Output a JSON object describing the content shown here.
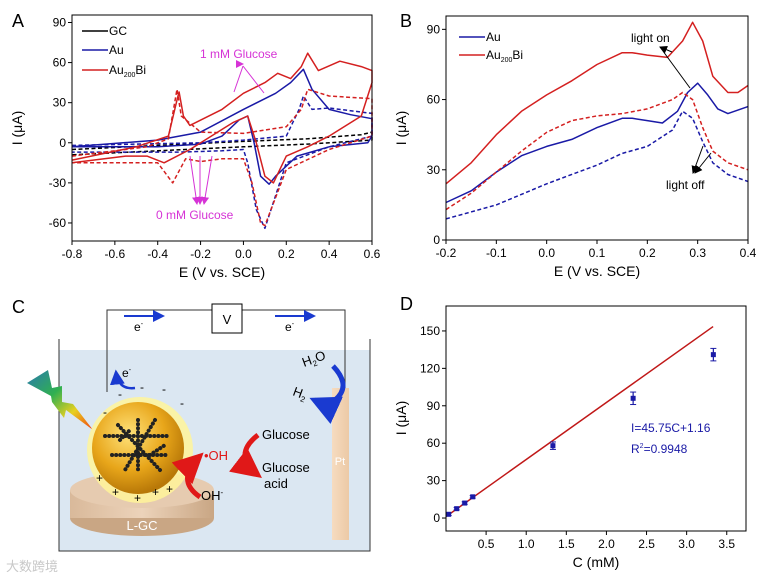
{
  "chart_data": [
    {
      "panel_label": "A",
      "type": "line",
      "xlabel": "E (V vs. SCE)",
      "ylabel": "I (μA)",
      "xlim": [
        -0.8,
        0.6
      ],
      "ylim": [
        -73.5,
        95.6
      ],
      "xticks": [
        -0.8,
        -0.6,
        -0.4,
        -0.2,
        0.0,
        0.2,
        0.4,
        0.6
      ],
      "xtick_labels": [
        "-0.8",
        "-0.6",
        "-0.4",
        "-0.2",
        "0.0",
        "0.2",
        "0.4",
        "0.6"
      ],
      "yticks": [
        -60,
        -30,
        0,
        30,
        60,
        90
      ],
      "ytick_labels": [
        "-60",
        "-30",
        "0",
        "30",
        "60",
        "90"
      ],
      "legend": {
        "placement": "top-left",
        "entries": [
          {
            "name": "GC",
            "color": "#000000"
          },
          {
            "name": "Au",
            "color": "#1a1aa6"
          },
          {
            "name": "Au",
            "sub": "200",
            "suffix": "Bi",
            "color": "#d42020"
          }
        ]
      },
      "annotations": {
        "top": "1 mM Glucose",
        "bottom": "0 mM Glucose",
        "color": "#d633d6"
      },
      "series": [
        {
          "name": "GC 0 mM",
          "color": "#000000",
          "dash": true,
          "points": [
            [
              -0.8,
              -5
            ],
            [
              -0.4,
              -2
            ],
            [
              0,
              1
            ],
            [
              0.3,
              3
            ],
            [
              0.55,
              6
            ],
            [
              0.6,
              8
            ],
            [
              0.6,
              2
            ],
            [
              0.3,
              -1
            ],
            [
              0,
              -3
            ],
            [
              -0.4,
              -6
            ],
            [
              -0.8,
              -9
            ]
          ]
        },
        {
          "name": "Au 1 mM",
          "color": "#1a1aa6",
          "dash": false,
          "points": [
            [
              -0.8,
              -3
            ],
            [
              -0.4,
              2
            ],
            [
              -0.2,
              8
            ],
            [
              0,
              25
            ],
            [
              0.15,
              37
            ],
            [
              0.22,
              45
            ],
            [
              0.28,
              55
            ],
            [
              0.32,
              40
            ],
            [
              0.4,
              25
            ],
            [
              0.5,
              21
            ],
            [
              0.6,
              18
            ],
            [
              0.6,
              5
            ],
            [
              0.58,
              0
            ],
            [
              0.4,
              -3
            ],
            [
              0.25,
              -10
            ],
            [
              0.15,
              -25
            ],
            [
              0.12,
              -31
            ],
            [
              0.08,
              -25
            ],
            [
              0.05,
              0
            ],
            [
              0.02,
              20
            ],
            [
              -0.02,
              17
            ],
            [
              -0.1,
              5
            ],
            [
              -0.2,
              -1
            ],
            [
              -0.4,
              -3
            ],
            [
              -0.8,
              -3
            ]
          ]
        },
        {
          "name": "Au 0 mM",
          "color": "#1a1aa6",
          "dash": true,
          "points": [
            [
              -0.8,
              -2
            ],
            [
              -0.2,
              0
            ],
            [
              0,
              2
            ],
            [
              0.2,
              5
            ],
            [
              0.26,
              25
            ],
            [
              0.28,
              35
            ],
            [
              0.32,
              25
            ],
            [
              0.4,
              26
            ],
            [
              0.6,
              22
            ],
            [
              0.6,
              5
            ],
            [
              0.4,
              -3
            ],
            [
              0.2,
              -15
            ],
            [
              0.1,
              -64
            ],
            [
              0.06,
              -50
            ],
            [
              0.02,
              -15
            ],
            [
              0,
              -5
            ],
            [
              -0.1,
              -6
            ],
            [
              -0.3,
              -7
            ],
            [
              -0.8,
              -7
            ]
          ]
        },
        {
          "name": "Au200Bi 1 mM",
          "color": "#d42020",
          "dash": false,
          "points": [
            [
              -0.8,
              -13
            ],
            [
              -0.5,
              -3
            ],
            [
              -0.35,
              5
            ],
            [
              -0.31,
              32
            ],
            [
              -0.3,
              38
            ],
            [
              -0.28,
              20
            ],
            [
              -0.25,
              13
            ],
            [
              -0.1,
              25
            ],
            [
              0,
              37
            ],
            [
              0.1,
              45
            ],
            [
              0.16,
              52
            ],
            [
              0.22,
              48
            ],
            [
              0.27,
              57
            ],
            [
              0.3,
              67
            ],
            [
              0.35,
              54
            ],
            [
              0.45,
              61
            ],
            [
              0.55,
              57
            ],
            [
              0.6,
              54
            ],
            [
              0.6,
              45
            ],
            [
              0.55,
              20
            ],
            [
              0.4,
              5
            ],
            [
              0.3,
              -3
            ],
            [
              0.2,
              -10
            ],
            [
              0.14,
              -30
            ],
            [
              0.1,
              -25
            ],
            [
              0.06,
              0
            ],
            [
              0.02,
              20
            ],
            [
              -0.05,
              15
            ],
            [
              -0.15,
              5
            ],
            [
              -0.25,
              -5
            ],
            [
              -0.37,
              -15
            ],
            [
              -0.45,
              -10
            ],
            [
              -0.55,
              -10
            ],
            [
              -0.8,
              -15
            ]
          ]
        },
        {
          "name": "Au200Bi 0 mM",
          "color": "#d42020",
          "dash": true,
          "points": [
            [
              -0.8,
              -10
            ],
            [
              -0.45,
              -3
            ],
            [
              -0.35,
              3
            ],
            [
              -0.31,
              40
            ],
            [
              -0.29,
              20
            ],
            [
              -0.2,
              8
            ],
            [
              0,
              7
            ],
            [
              0.2,
              12
            ],
            [
              0.27,
              25
            ],
            [
              0.3,
              40
            ],
            [
              0.4,
              35
            ],
            [
              0.6,
              33
            ],
            [
              0.6,
              5
            ],
            [
              0.4,
              -5
            ],
            [
              0.2,
              -20
            ],
            [
              0.1,
              -62
            ],
            [
              0.08,
              -60
            ],
            [
              0.04,
              -30
            ],
            [
              0,
              -12
            ],
            [
              -0.1,
              -12
            ],
            [
              -0.2,
              -14
            ],
            [
              -0.27,
              -12
            ],
            [
              -0.33,
              -30
            ],
            [
              -0.4,
              -15
            ],
            [
              -0.8,
              -15
            ]
          ]
        }
      ]
    },
    {
      "panel_label": "B",
      "type": "line",
      "xlabel": "E (V vs. SCE)",
      "ylabel": "I (μA)",
      "xlim": [
        -0.2,
        0.4
      ],
      "ylim": [
        0,
        95.7
      ],
      "xticks": [
        -0.2,
        -0.1,
        0.0,
        0.1,
        0.2,
        0.3,
        0.4
      ],
      "xtick_labels": [
        "-0.2",
        "-0.1",
        "0.0",
        "0.1",
        "0.2",
        "0.3",
        "0.4"
      ],
      "yticks": [
        0,
        30,
        60,
        90
      ],
      "ytick_labels": [
        "0",
        "30",
        "60",
        "90"
      ],
      "legend": {
        "placement": "top-left",
        "entries": [
          {
            "name": "Au",
            "color": "#1a1aa6"
          },
          {
            "name": "Au",
            "sub": "200",
            "suffix": "Bi",
            "color": "#d42020"
          }
        ]
      },
      "annotations": {
        "top": "light on",
        "bottom": "light off",
        "color": "#000000"
      },
      "series": [
        {
          "name": "Au200Bi light on",
          "color": "#d42020",
          "dash": false,
          "points": [
            [
              -0.2,
              24
            ],
            [
              -0.15,
              33
            ],
            [
              -0.1,
              45
            ],
            [
              -0.05,
              55
            ],
            [
              0,
              62
            ],
            [
              0.05,
              68
            ],
            [
              0.1,
              75
            ],
            [
              0.15,
              80
            ],
            [
              0.17,
              80
            ],
            [
              0.2,
              79
            ],
            [
              0.24,
              78
            ],
            [
              0.27,
              85
            ],
            [
              0.29,
              93
            ],
            [
              0.31,
              85
            ],
            [
              0.33,
              70
            ],
            [
              0.36,
              63
            ],
            [
              0.38,
              63
            ],
            [
              0.4,
              66
            ]
          ]
        },
        {
          "name": "Au light on",
          "color": "#1a1aa6",
          "dash": false,
          "points": [
            [
              -0.2,
              16
            ],
            [
              -0.15,
              21
            ],
            [
              -0.1,
              29
            ],
            [
              -0.05,
              36
            ],
            [
              0,
              40
            ],
            [
              0.05,
              43
            ],
            [
              0.1,
              48
            ],
            [
              0.15,
              52
            ],
            [
              0.17,
              52
            ],
            [
              0.2,
              51
            ],
            [
              0.23,
              50
            ],
            [
              0.26,
              55
            ],
            [
              0.28,
              63
            ],
            [
              0.3,
              67
            ],
            [
              0.32,
              62
            ],
            [
              0.34,
              56
            ],
            [
              0.36,
              54
            ],
            [
              0.4,
              57
            ]
          ]
        },
        {
          "name": "Au200Bi light off",
          "color": "#d42020",
          "dash": true,
          "points": [
            [
              -0.2,
              13
            ],
            [
              -0.15,
              20
            ],
            [
              -0.1,
              29
            ],
            [
              -0.05,
              38
            ],
            [
              0,
              46
            ],
            [
              0.05,
              51
            ],
            [
              0.1,
              53
            ],
            [
              0.15,
              54
            ],
            [
              0.2,
              56
            ],
            [
              0.25,
              60
            ],
            [
              0.27,
              63
            ],
            [
              0.29,
              60
            ],
            [
              0.31,
              48
            ],
            [
              0.33,
              38
            ],
            [
              0.36,
              33
            ],
            [
              0.4,
              30
            ]
          ]
        },
        {
          "name": "Au light off",
          "color": "#1a1aa6",
          "dash": true,
          "points": [
            [
              -0.2,
              9
            ],
            [
              -0.1,
              15
            ],
            [
              0,
              24
            ],
            [
              0.1,
              32
            ],
            [
              0.15,
              37
            ],
            [
              0.2,
              40
            ],
            [
              0.25,
              47
            ],
            [
              0.27,
              55
            ],
            [
              0.29,
              52
            ],
            [
              0.31,
              42
            ],
            [
              0.33,
              33
            ],
            [
              0.36,
              28
            ],
            [
              0.4,
              25
            ]
          ]
        }
      ]
    },
    {
      "panel_label": "D",
      "type": "scatter",
      "xlabel": "C (mM)",
      "ylabel": "I (μA)",
      "xlim": [
        0,
        3.74
      ],
      "ylim": [
        -10.4,
        170
      ],
      "xticks": [
        0.5,
        1.0,
        1.5,
        2.0,
        2.5,
        3.0,
        3.5
      ],
      "xtick_labels": [
        "0.5",
        "1.0",
        "1.5",
        "2.0",
        "2.5",
        "3.0",
        "3.5"
      ],
      "yticks": [
        0,
        30,
        60,
        90,
        120,
        150
      ],
      "ytick_labels": [
        "0",
        "30",
        "60",
        "90",
        "120",
        "150"
      ],
      "points": [
        {
          "x": 0.033,
          "y": 3,
          "err": 1
        },
        {
          "x": 0.133,
          "y": 7.5,
          "err": 1
        },
        {
          "x": 0.233,
          "y": 12,
          "err": 1
        },
        {
          "x": 0.333,
          "y": 17,
          "err": 1
        },
        {
          "x": 1.333,
          "y": 58,
          "err": 3
        },
        {
          "x": 2.333,
          "y": 96,
          "err": 5
        },
        {
          "x": 3.333,
          "y": 131,
          "err": 5
        }
      ],
      "fit": {
        "slope": 45.75,
        "intercept": 1.16,
        "x_range": [
          0,
          3.33
        ],
        "color": "#c01818",
        "equation": "I=45.75C+1.16",
        "r2_label": "R",
        "r2_sup": "2",
        "r2_value": "=0.9948"
      },
      "point_color": "#1a1aa6"
    }
  ],
  "diagram": {
    "panel_label": "C",
    "voltmeter": "V",
    "electron": "e",
    "electron_sup": "-",
    "minus_sign": "-",
    "plus_sign": "+",
    "h2o": "H",
    "h2o_sub": "2",
    "h2o_suffix": "O",
    "h2": "H",
    "h2_sub": "2",
    "oh_radical": "•OH",
    "hydroxide": "OH",
    "hydroxide_sup": "-",
    "glucose": "Glucose",
    "glucose_acid_1": "Glucose",
    "glucose_acid_2": "acid",
    "electrode": "L-GC",
    "counter_electrode": "Pt",
    "water_color": "#dbe7f2"
  },
  "watermark": "大数跨境"
}
